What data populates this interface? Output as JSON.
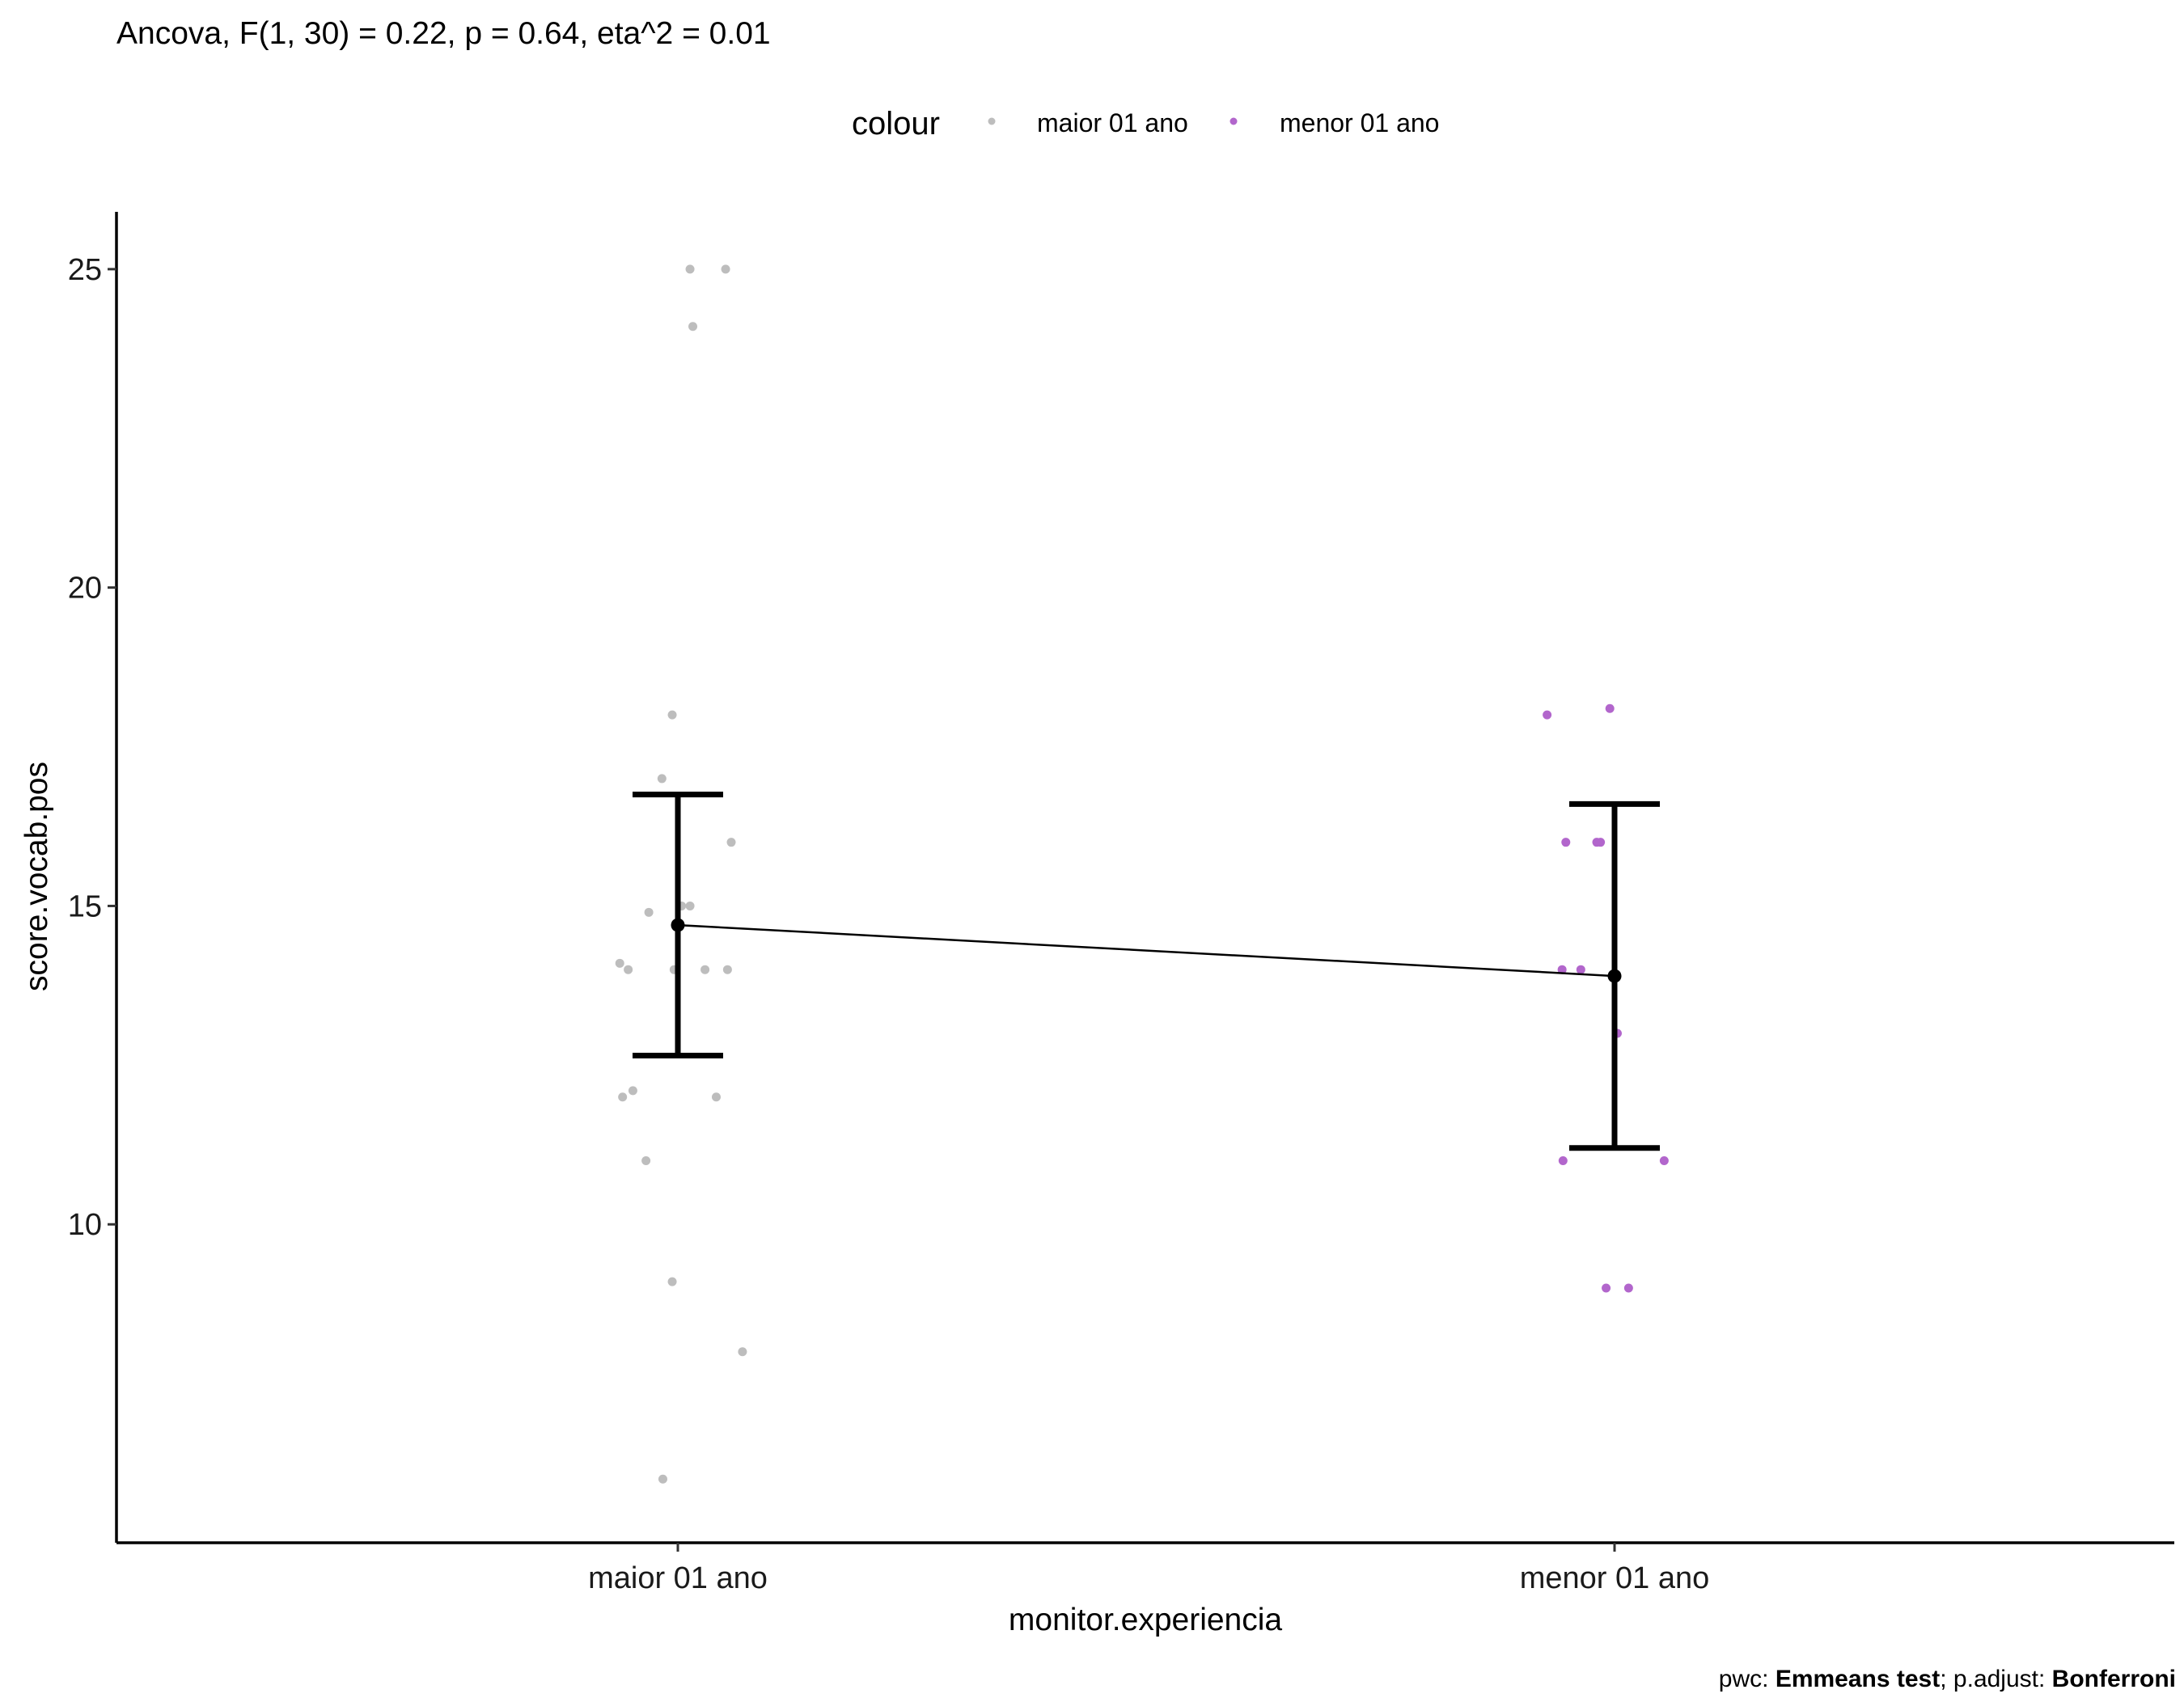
{
  "chart_data": {
    "type": "scatter",
    "title": "Ancova, F(1, 30) = 0.22, p = 0.64, eta^2 = 0.01",
    "xlabel": "monitor.experiencia",
    "ylabel": "score.vocab.pos",
    "categories": [
      "maior 01 ano",
      "menor 01 ano"
    ],
    "ylim": [
      5.0,
      25.9
    ],
    "yticks": [
      10,
      15,
      20,
      25
    ],
    "legend": {
      "title": "colour",
      "placement": "top",
      "entries": [
        {
          "label": "maior 01 ano",
          "color": "#bdbdbd"
        },
        {
          "label": "menor 01 ano",
          "color": "#b266cc"
        }
      ]
    },
    "series": [
      {
        "name": "maior 01 ano",
        "color": "#bdbdbd",
        "category": "maior 01 ano",
        "points": [
          {
            "dx": 0.013,
            "y": 25.0
          },
          {
            "dx": 0.051,
            "y": 25.0
          },
          {
            "dx": 0.016,
            "y": 24.1
          },
          {
            "dx": -0.006,
            "y": 18.0
          },
          {
            "dx": -0.017,
            "y": 17.0
          },
          {
            "dx": 0.057,
            "y": 16.0
          },
          {
            "dx": 0.004,
            "y": 15.0
          },
          {
            "dx": 0.013,
            "y": 15.0
          },
          {
            "dx": -0.031,
            "y": 14.9
          },
          {
            "dx": -0.062,
            "y": 14.1
          },
          {
            "dx": -0.053,
            "y": 14.0
          },
          {
            "dx": -0.004,
            "y": 14.0
          },
          {
            "dx": 0.029,
            "y": 14.0
          },
          {
            "dx": 0.053,
            "y": 14.0
          },
          {
            "dx": -0.048,
            "y": 12.1
          },
          {
            "dx": -0.059,
            "y": 12.0
          },
          {
            "dx": 0.041,
            "y": 12.0
          },
          {
            "dx": -0.034,
            "y": 11.0
          },
          {
            "dx": -0.006,
            "y": 9.1
          },
          {
            "dx": 0.069,
            "y": 8.0
          },
          {
            "dx": -0.016,
            "y": 6.0
          }
        ]
      },
      {
        "name": "menor 01 ano",
        "color": "#b266cc",
        "category": "menor 01 ano",
        "points": [
          {
            "dx": -0.072,
            "y": 18.0
          },
          {
            "dx": -0.005,
            "y": 18.1
          },
          {
            "dx": -0.052,
            "y": 16.0
          },
          {
            "dx": -0.019,
            "y": 16.0
          },
          {
            "dx": -0.015,
            "y": 16.0
          },
          {
            "dx": -0.056,
            "y": 14.0
          },
          {
            "dx": -0.036,
            "y": 14.0
          },
          {
            "dx": 0.003,
            "y": 13.0
          },
          {
            "dx": -0.055,
            "y": 11.0
          },
          {
            "dx": 0.053,
            "y": 11.0
          },
          {
            "dx": -0.009,
            "y": 9.0
          },
          {
            "dx": 0.015,
            "y": 9.0
          }
        ]
      }
    ],
    "summary": {
      "color": "#000000",
      "points": [
        {
          "category": "maior 01 ano",
          "mean": 14.7,
          "lower": 12.65,
          "upper": 16.75
        },
        {
          "category": "menor 01 ano",
          "mean": 13.9,
          "lower": 11.2,
          "upper": 16.6
        }
      ]
    },
    "caption": [
      {
        "text": "pwc: ",
        "bold": false
      },
      {
        "text": "Emmeans test",
        "bold": true
      },
      {
        "text": "; p.adjust: ",
        "bold": false
      },
      {
        "text": "Bonferroni",
        "bold": true
      }
    ]
  }
}
